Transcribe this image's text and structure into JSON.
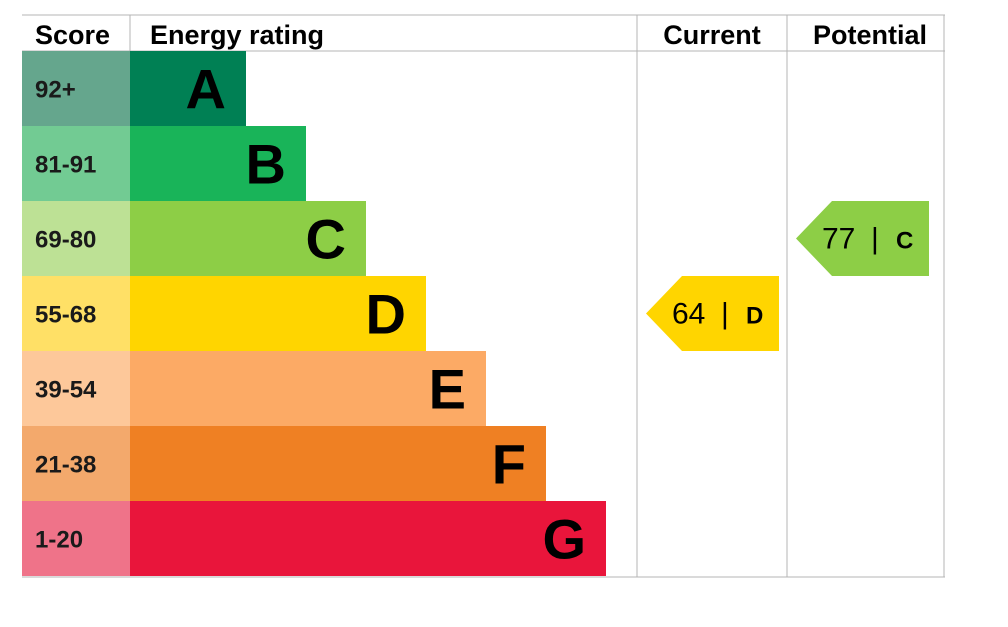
{
  "headers": {
    "score": "Score",
    "rating": "Energy rating",
    "current": "Current",
    "potential": "Potential"
  },
  "chart_data": {
    "type": "bar",
    "bands": [
      {
        "band": "A",
        "range": "92+",
        "score_min": 92,
        "score_max": 100,
        "color": "#008054",
        "score_color": "#65a68d"
      },
      {
        "band": "B",
        "range": "81-91",
        "score_min": 81,
        "score_max": 91,
        "color": "#19b459",
        "score_color": "#72cb93"
      },
      {
        "band": "C",
        "range": "69-80",
        "score_min": 69,
        "score_max": 80,
        "color": "#8dce46",
        "score_color": "#bde195"
      },
      {
        "band": "D",
        "range": "55-68",
        "score_min": 55,
        "score_max": 68,
        "color": "#ffd500",
        "score_color": "#ffe066"
      },
      {
        "band": "E",
        "range": "39-54",
        "score_min": 39,
        "score_max": 54,
        "color": "#fcaa65",
        "score_color": "#fdc89a"
      },
      {
        "band": "F",
        "range": "21-38",
        "score_min": 21,
        "score_max": 38,
        "color": "#ef8023",
        "score_color": "#f3a96c"
      },
      {
        "band": "G",
        "range": "1-20",
        "score_min": 1,
        "score_max": 20,
        "color": "#e9153b",
        "score_color": "#ef7389"
      }
    ],
    "current": {
      "score": 64,
      "score_text": "64",
      "band": "D",
      "color": "#ffd500"
    },
    "potential": {
      "score": 77,
      "score_text": "77",
      "band": "C",
      "color": "#8dce46"
    },
    "separator": "|"
  }
}
